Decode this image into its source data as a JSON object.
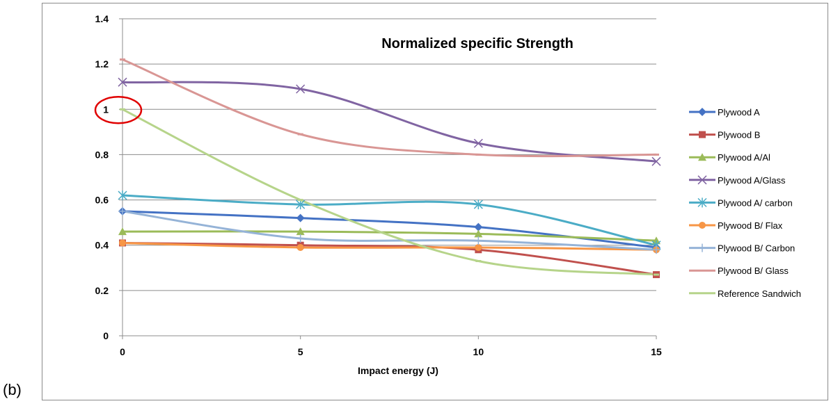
{
  "panel_label": "(b)",
  "chart_data": {
    "type": "line",
    "title": "Normalized specific Strength",
    "xlabel": "Impact energy (J)",
    "ylabel": "",
    "x": [
      0,
      5,
      10,
      15
    ],
    "xlim": [
      0,
      15
    ],
    "ylim": [
      0,
      1.4
    ],
    "xticks": [
      "0",
      "5",
      "10",
      "15"
    ],
    "yticks": [
      "0",
      "0.2",
      "0.4",
      "0.6",
      "0.8",
      "1",
      "1.2",
      "1.4"
    ],
    "grid": "horizontal",
    "legend_position": "right",
    "highlight": {
      "x": 0,
      "y": 1,
      "shape": "red ellipse",
      "color": "#e00000"
    },
    "series": [
      {
        "name": "Plywood A",
        "color": "#4472C4",
        "marker": "diamond",
        "values": [
          0.55,
          0.52,
          0.48,
          0.39
        ]
      },
      {
        "name": "Plywood B",
        "color": "#C0504D",
        "marker": "square",
        "values": [
          0.41,
          0.4,
          0.38,
          0.27
        ]
      },
      {
        "name": "Plywood A/Al",
        "color": "#9BBB59",
        "marker": "triangle",
        "values": [
          0.46,
          0.46,
          0.45,
          0.42
        ]
      },
      {
        "name": "Plywood A/Glass",
        "color": "#8064A2",
        "marker": "x",
        "values": [
          1.12,
          1.09,
          0.85,
          0.77
        ]
      },
      {
        "name": "Plywood A/ carbon",
        "color": "#4BACC6",
        "marker": "asterisk",
        "values": [
          0.62,
          0.58,
          0.58,
          0.4
        ]
      },
      {
        "name": "Plywood B/ Flax",
        "color": "#F79646",
        "marker": "circle",
        "values": [
          0.41,
          0.39,
          0.39,
          0.38
        ]
      },
      {
        "name": "Plywood B/ Carbon",
        "color": "#95B3D7",
        "marker": "plus",
        "values": [
          0.55,
          0.43,
          0.42,
          0.38
        ]
      },
      {
        "name": "Plywood B/ Glass",
        "color": "#D99694",
        "marker": "dash",
        "values": [
          1.22,
          0.89,
          0.8,
          0.8
        ]
      },
      {
        "name": "Reference Sandwich",
        "color": "#B6D48A",
        "marker": "dash",
        "values": [
          1.0,
          0.6,
          0.33,
          0.27
        ]
      }
    ]
  }
}
